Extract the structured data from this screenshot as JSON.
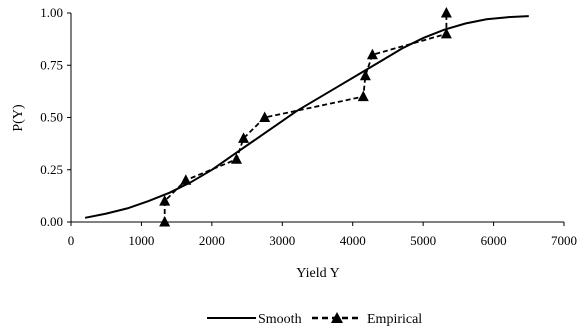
{
  "chart_data": {
    "type": "line",
    "title": "",
    "xlabel": "Yield Y",
    "ylabel": "P(Y)",
    "xlim": [
      0,
      7000
    ],
    "ylim": [
      0,
      1
    ],
    "x_ticks": [
      0,
      1000,
      2000,
      3000,
      4000,
      5000,
      6000,
      7000
    ],
    "x_tick_labels": [
      "0",
      "1000",
      "2000",
      "3000",
      "4000",
      "5000",
      "6000",
      "7000"
    ],
    "y_ticks": [
      0,
      0.25,
      0.5,
      0.75,
      1
    ],
    "y_tick_labels": [
      "0.00",
      "0.25",
      "0.50",
      "0.75",
      "1.00"
    ],
    "grid": false,
    "legend_position": "bottom",
    "series": [
      {
        "name": "Smooth",
        "style": "solid",
        "marker": "none",
        "color": "#000000",
        "x": [
          200,
          500,
          800,
          1100,
          1400,
          1700,
          2000,
          2300,
          2600,
          2900,
          3200,
          3500,
          3800,
          4100,
          4400,
          4700,
          5000,
          5300,
          5600,
          5900,
          6200,
          6500
        ],
        "y": [
          0.02,
          0.04,
          0.065,
          0.1,
          0.14,
          0.19,
          0.25,
          0.32,
          0.39,
          0.46,
          0.53,
          0.59,
          0.65,
          0.71,
          0.77,
          0.83,
          0.88,
          0.92,
          0.95,
          0.97,
          0.98,
          0.985
        ]
      },
      {
        "name": "Empirical",
        "style": "dashed",
        "marker": "triangle",
        "color": "#000000",
        "x": [
          1330,
          1330,
          1630,
          2350,
          2450,
          2750,
          4150,
          4180,
          4280,
          5330,
          5330
        ],
        "y": [
          0.0,
          0.1,
          0.2,
          0.3,
          0.4,
          0.5,
          0.6,
          0.7,
          0.8,
          0.9,
          1.0
        ]
      }
    ]
  }
}
